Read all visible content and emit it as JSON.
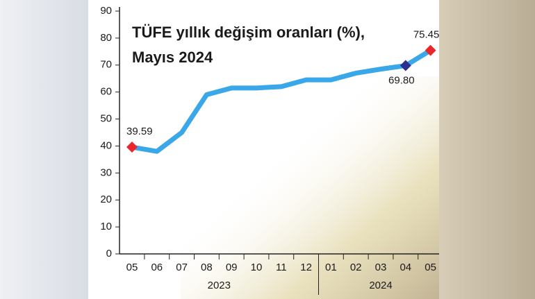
{
  "chart_data": {
    "type": "line",
    "title": [
      "TÜFE yıllık değişim oranları (%),",
      "Mayıs 2024"
    ],
    "categories": [
      "05",
      "06",
      "07",
      "08",
      "09",
      "10",
      "11",
      "12",
      "01",
      "02",
      "03",
      "04",
      "05"
    ],
    "category_groups": [
      {
        "label": "2023",
        "size": 8
      },
      {
        "label": "2024",
        "size": 5
      }
    ],
    "series": [
      {
        "color": "#3aa8e8",
        "values": [
          39.59,
          38,
          45,
          59,
          61.5,
          61.5,
          62,
          64.5,
          64.5,
          67,
          68.5,
          69.8,
          75.45
        ],
        "value_labels": [
          "39.59",
          null,
          null,
          null,
          null,
          null,
          null,
          null,
          null,
          null,
          null,
          "69.80",
          "75.45"
        ],
        "marker_colors": [
          "#e8262c",
          null,
          null,
          null,
          null,
          null,
          null,
          null,
          null,
          null,
          null,
          "#2b2f8f",
          "#e8262c"
        ]
      }
    ],
    "ylim": [
      0,
      90
    ],
    "yticks": [
      0,
      10,
      20,
      30,
      40,
      50,
      60,
      70,
      80,
      90
    ]
  }
}
